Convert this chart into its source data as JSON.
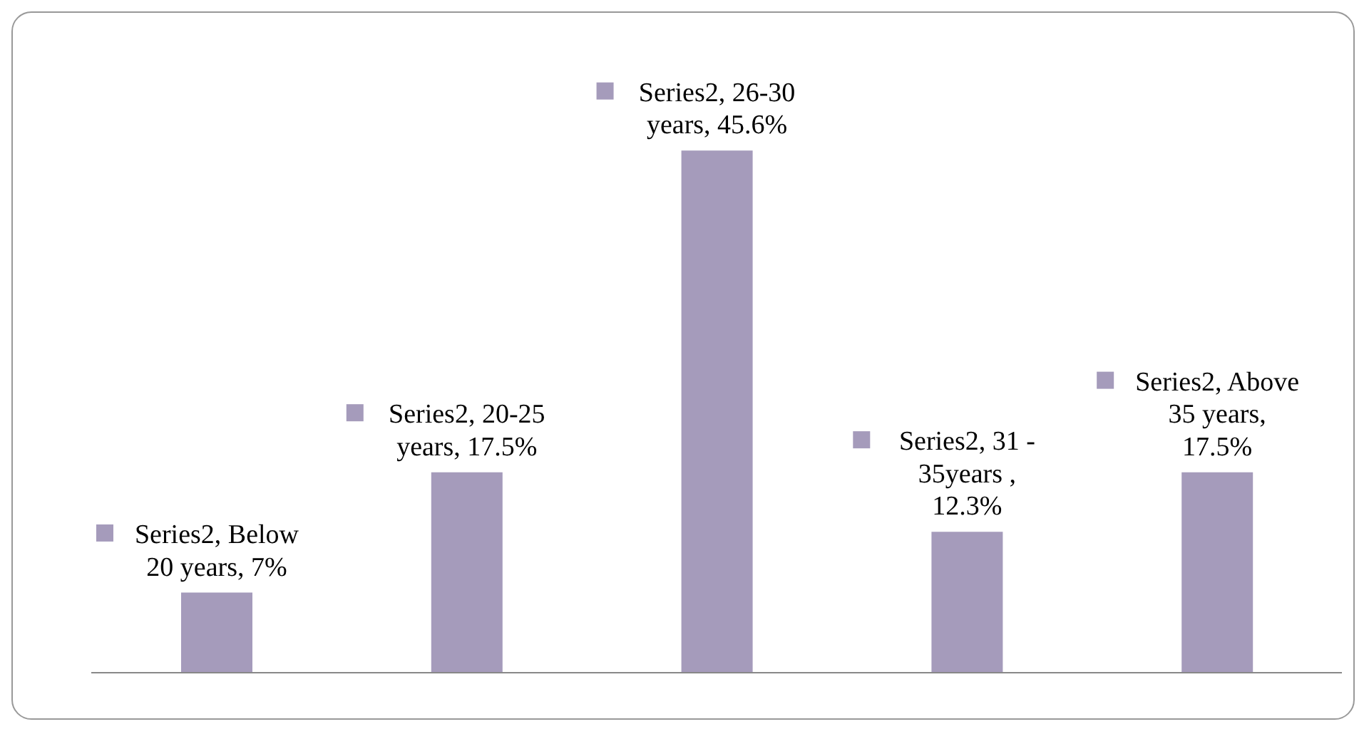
{
  "chart_data": {
    "type": "bar",
    "categories": [
      null,
      null,
      null,
      null,
      null
    ],
    "values": [
      7,
      17.5,
      45.6,
      12.3,
      17.5
    ],
    "color": "#a59bbb",
    "value_labels": [
      "Series2, Below 20 years, 7%",
      "Series2, 20-25 years, 17.5%",
      "Series2, 26-30 years, 45.6%",
      "Series2, 31 - 35years , 12.3%",
      "Series2, Above 35 years, 17.5%"
    ],
    "grid": false,
    "legend": false
  }
}
